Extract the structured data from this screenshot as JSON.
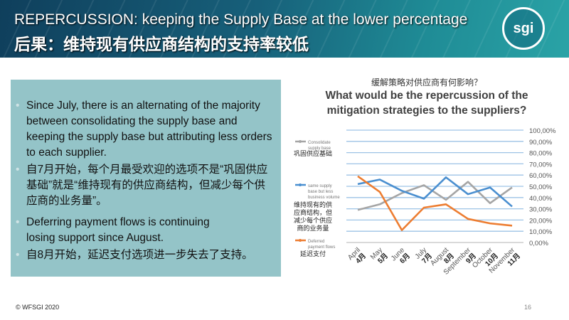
{
  "header": {
    "title_en": "REPERCUSSION: keeping the Supply Base at the lower percentage",
    "title_zh": "后果：维持现有供应商结构的支持率较低",
    "logo": "sgi WORLD FEDERATION SPORTING GOODS INDUSTRY"
  },
  "bullets": [
    "Since July, there is an alternating of the majority between consolidating the supply base and keeping the supply base but attributing less orders to each supplier.",
    "自7月开始，每个月最受欢迎的选项不是“巩固供应基础”就是“维持现有的供应商结构，但减少每个供应商的业务量”。",
    "Deferring payment flows is continuing losing support since August.",
    "自8月开始，延迟支付选项进一步失去了支持。"
  ],
  "chart_title_zh": "缓解策略对供应商有何影响？",
  "chart_title_en": "What would be the repercussion of the mitigation strategies to the suppliers?",
  "chart_data": {
    "type": "line",
    "title": "What would be the repercussion of the mitigation strategies to the suppliers?",
    "categories": [
      "April",
      "May",
      "June",
      "July",
      "August",
      "September",
      "October",
      "November"
    ],
    "categories_zh": [
      "4月",
      "5月",
      "6月",
      "7月",
      "8月",
      "9月",
      "10月",
      "11月"
    ],
    "yticks": [
      "0,00%",
      "10,00%",
      "20,00%",
      "30,00%",
      "40,00%",
      "50,00%",
      "60,00%",
      "70,00%",
      "80,00%",
      "90,00%",
      "100,00%"
    ],
    "ylim": [
      0,
      100
    ],
    "grid": true,
    "legend_position": "left",
    "series": [
      {
        "name": "Consolidate supply base",
        "name_zh": "巩固供应基础",
        "color": "#a5a5a5",
        "values": [
          29,
          34,
          44,
          51,
          38,
          54,
          35,
          49
        ]
      },
      {
        "name": "same supply base but less business volume",
        "name_zh": "维持现有的供应商结构，但减少每个供应商的业务量",
        "color": "#4a8fd0",
        "values": [
          52,
          56,
          46,
          39,
          58,
          43,
          49,
          32
        ]
      },
      {
        "name": "Deferred payment flows",
        "name_zh": "延迟支付",
        "color": "#ed7d31",
        "values": [
          59,
          45,
          11,
          31,
          34,
          21,
          17,
          15
        ]
      }
    ]
  },
  "footer": "© WFSGI 2020",
  "page_number": "16"
}
